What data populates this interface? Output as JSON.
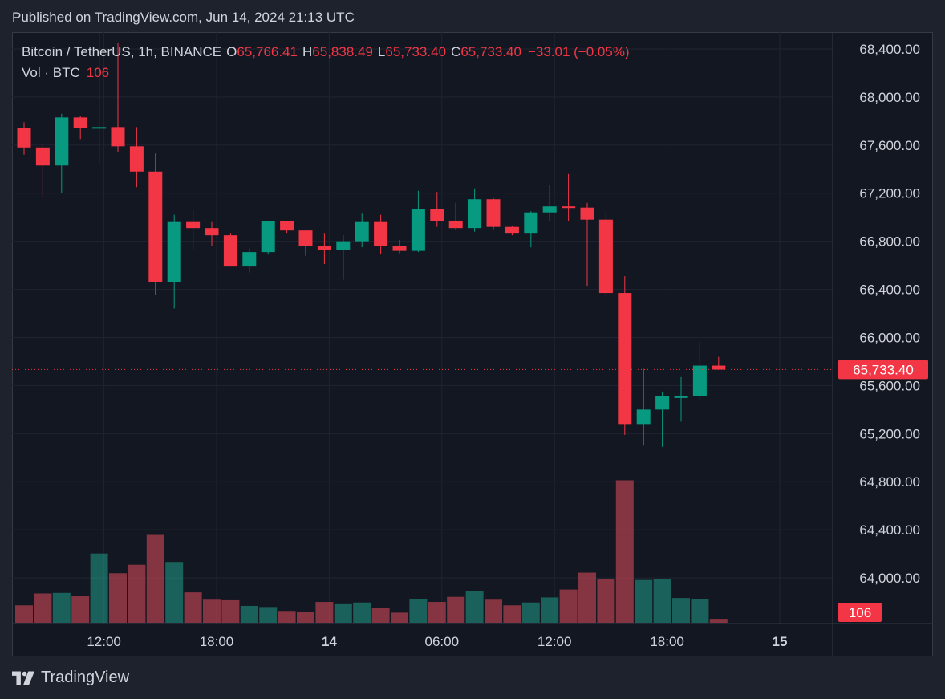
{
  "header": {
    "published": "Published on TradingView.com, Jun 14, 2024 21:13 UTC"
  },
  "legend": {
    "symbol": "Bitcoin / TetherUS, 1h, BINANCE",
    "o_label": "O",
    "o_value": "65,766.41",
    "h_label": "H",
    "h_value": "65,838.49",
    "l_label": "L",
    "l_value": "65,733.40",
    "c_label": "C",
    "c_value": "65,733.40",
    "change": "−33.01 (−0.05%)",
    "vol_label": "Vol · BTC",
    "vol_value": "106"
  },
  "footer": {
    "brand": "TradingView"
  },
  "colors": {
    "up": "#089981",
    "down": "#f23645",
    "vol_up": "#22ab94",
    "vol_down": "#f7525f",
    "background": "#131722",
    "grid": "#1f2430"
  },
  "chart_data": {
    "type": "candlestick",
    "price_axis": {
      "ticks": [
        64000,
        64400,
        64800,
        65200,
        65600,
        66000,
        66400,
        66800,
        67200,
        67600,
        68000,
        68400
      ],
      "tick_labels": [
        "64,000.00",
        "64,400.00",
        "64,800.00",
        "65,200.00",
        "65,600.00",
        "66,000.00",
        "66,400.00",
        "66,800.00",
        "67,200.00",
        "67,600.00",
        "68,000.00",
        "68,400.00"
      ],
      "range": [
        63620,
        68540
      ]
    },
    "time_axis": {
      "labels": [
        {
          "text": "12:00",
          "bar": 4,
          "bold": false
        },
        {
          "text": "18:00",
          "bar": 10,
          "bold": false
        },
        {
          "text": "14",
          "bar": 16,
          "bold": true
        },
        {
          "text": "06:00",
          "bar": 22,
          "bold": false
        },
        {
          "text": "12:00",
          "bar": 28,
          "bold": false
        },
        {
          "text": "18:00",
          "bar": 34,
          "bold": false
        },
        {
          "text": "15",
          "bar": 40,
          "bold": true
        }
      ]
    },
    "last_price": {
      "value": 65733.4,
      "label": "65,733.40"
    },
    "volume_label": "106",
    "candles": [
      {
        "o": 67740,
        "h": 67790,
        "l": 67520,
        "c": 67580
      },
      {
        "o": 67580,
        "h": 67620,
        "l": 67170,
        "c": 67430
      },
      {
        "o": 67430,
        "h": 67860,
        "l": 67200,
        "c": 67830
      },
      {
        "o": 67830,
        "h": 67840,
        "l": 67650,
        "c": 67740
      },
      {
        "o": 67740,
        "h": 68570,
        "l": 67450,
        "c": 67750
      },
      {
        "o": 67750,
        "h": 68450,
        "l": 67540,
        "c": 67590
      },
      {
        "o": 67590,
        "h": 67750,
        "l": 67250,
        "c": 67380
      },
      {
        "o": 67380,
        "h": 67530,
        "l": 66350,
        "c": 66460
      },
      {
        "o": 66460,
        "h": 67020,
        "l": 66240,
        "c": 66960
      },
      {
        "o": 66960,
        "h": 67060,
        "l": 66730,
        "c": 66910
      },
      {
        "o": 66910,
        "h": 66960,
        "l": 66760,
        "c": 66850
      },
      {
        "o": 66850,
        "h": 66870,
        "l": 66590,
        "c": 66590
      },
      {
        "o": 66590,
        "h": 66740,
        "l": 66540,
        "c": 66710
      },
      {
        "o": 66710,
        "h": 66970,
        "l": 66690,
        "c": 66970
      },
      {
        "o": 66970,
        "h": 66970,
        "l": 66870,
        "c": 66890
      },
      {
        "o": 66890,
        "h": 66890,
        "l": 66680,
        "c": 66760
      },
      {
        "o": 66760,
        "h": 66870,
        "l": 66610,
        "c": 66730
      },
      {
        "o": 66730,
        "h": 66850,
        "l": 66480,
        "c": 66800
      },
      {
        "o": 66800,
        "h": 67030,
        "l": 66750,
        "c": 66960
      },
      {
        "o": 66960,
        "h": 67020,
        "l": 66690,
        "c": 66760
      },
      {
        "o": 66760,
        "h": 66810,
        "l": 66700,
        "c": 66720
      },
      {
        "o": 66720,
        "h": 67220,
        "l": 66710,
        "c": 67070
      },
      {
        "o": 67070,
        "h": 67210,
        "l": 66920,
        "c": 66970
      },
      {
        "o": 66970,
        "h": 67120,
        "l": 66890,
        "c": 66910
      },
      {
        "o": 66910,
        "h": 67240,
        "l": 66880,
        "c": 67150
      },
      {
        "o": 67150,
        "h": 67160,
        "l": 66900,
        "c": 66920
      },
      {
        "o": 66920,
        "h": 66930,
        "l": 66850,
        "c": 66870
      },
      {
        "o": 66870,
        "h": 67050,
        "l": 66750,
        "c": 67040
      },
      {
        "o": 67040,
        "h": 67270,
        "l": 66970,
        "c": 67090
      },
      {
        "o": 67090,
        "h": 67360,
        "l": 66970,
        "c": 67080
      },
      {
        "o": 67080,
        "h": 67120,
        "l": 66430,
        "c": 66980
      },
      {
        "o": 66980,
        "h": 67040,
        "l": 66340,
        "c": 66370
      },
      {
        "o": 66370,
        "h": 66510,
        "l": 65190,
        "c": 65280
      },
      {
        "o": 65280,
        "h": 65740,
        "l": 65100,
        "c": 65400
      },
      {
        "o": 65400,
        "h": 65550,
        "l": 65090,
        "c": 65510
      },
      {
        "o": 65510,
        "h": 65670,
        "l": 65300,
        "c": 65510
      },
      {
        "o": 65510,
        "h": 65970,
        "l": 65470,
        "c": 65766
      },
      {
        "o": 65766,
        "h": 65838,
        "l": 65733,
        "c": 65733
      }
    ],
    "volumes": [
      310,
      520,
      530,
      470,
      1230,
      880,
      1030,
      1560,
      1080,
      540,
      410,
      400,
      300,
      280,
      210,
      190,
      370,
      330,
      360,
      270,
      180,
      420,
      370,
      460,
      560,
      410,
      310,
      360,
      450,
      590,
      890,
      780,
      2530,
      760,
      780,
      440,
      420,
      70
    ],
    "volume_range": [
      0,
      2850
    ]
  }
}
